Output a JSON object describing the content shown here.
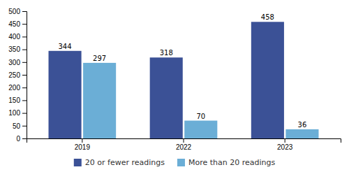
{
  "chart_data": {
    "type": "bar",
    "categories": [
      "2019",
      "2022",
      "2023"
    ],
    "series": [
      {
        "name": "20 or fewer readings",
        "color": "#3B5196",
        "values": [
          344,
          318,
          458
        ]
      },
      {
        "name": "More than 20 readings",
        "color": "#6BAED6",
        "values": [
          297,
          70,
          36
        ]
      }
    ],
    "ylim": [
      0,
      500
    ],
    "yticks": [
      0,
      50,
      100,
      150,
      200,
      250,
      300,
      350,
      400,
      450,
      500
    ],
    "data_labels": true,
    "legend": "bottom",
    "grid": false
  }
}
